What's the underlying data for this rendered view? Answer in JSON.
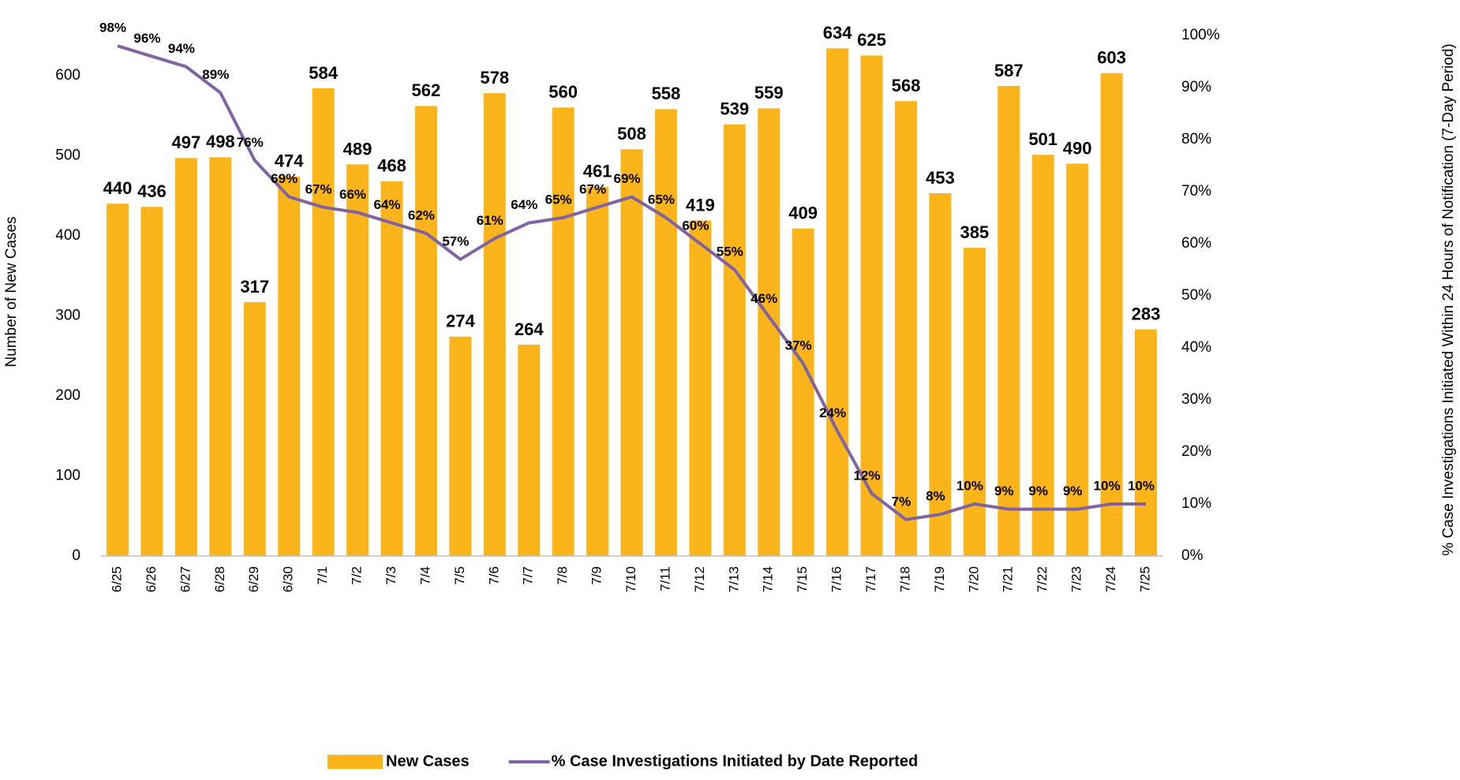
{
  "chart_data": {
    "type": "bar_line",
    "categories": [
      "6/25",
      "6/26",
      "6/27",
      "6/28",
      "6/29",
      "6/30",
      "7/1",
      "7/2",
      "7/3",
      "7/4",
      "7/5",
      "7/6",
      "7/7",
      "7/8",
      "7/9",
      "7/10",
      "7/11",
      "7/12",
      "7/13",
      "7/14",
      "7/15",
      "7/16",
      "7/17",
      "7/18",
      "7/19",
      "7/20",
      "7/21",
      "7/22",
      "7/23",
      "7/24",
      "7/25"
    ],
    "series": [
      {
        "name": "New Cases",
        "type": "bar",
        "color": "#fbb41a",
        "values": [
          440,
          436,
          497,
          498,
          317,
          474,
          584,
          489,
          468,
          562,
          274,
          578,
          264,
          560,
          461,
          508,
          558,
          419,
          539,
          559,
          409,
          634,
          625,
          568,
          453,
          385,
          587,
          501,
          490,
          603,
          283
        ]
      },
      {
        "name": "% Case Investigations Initiated by Date Reported",
        "type": "line",
        "axis": "y2",
        "color": "#8064a2",
        "values": [
          98,
          96,
          94,
          89,
          76,
          69,
          67,
          66,
          64,
          62,
          57,
          61,
          64,
          65,
          67,
          69,
          65,
          60,
          55,
          46,
          37,
          24,
          12,
          7,
          8,
          10,
          9,
          9,
          9,
          10,
          10
        ],
        "value_labels": [
          "98%",
          "96%",
          "94%",
          "89%",
          "76%",
          "69%",
          "67%",
          "66%",
          "64%",
          "62%",
          "57%",
          "61%",
          "64%",
          "65%",
          "67%",
          "69%",
          "65%",
          "60%",
          "55%",
          "46%",
          "37%",
          "24%",
          "12%",
          "7%",
          "8%",
          "10%",
          "9%",
          "9%",
          "9%",
          "10%",
          "10%"
        ]
      }
    ],
    "ylabel": "Number of New Cases",
    "y2label": "% Case Investigations Initiated Within 24 Hours of Notification (7-Day Period)",
    "ylim": [
      0,
      650
    ],
    "yticks": [
      0,
      100,
      200,
      300,
      400,
      500,
      600
    ],
    "y2lim": [
      0,
      100
    ],
    "y2ticks": [
      {
        "value": 0,
        "label": "0%"
      },
      {
        "value": 10,
        "label": "10%"
      },
      {
        "value": 20,
        "label": "20%"
      },
      {
        "value": 30,
        "label": "30%"
      },
      {
        "value": 40,
        "label": "40%"
      },
      {
        "value": 50,
        "label": "50%"
      },
      {
        "value": 60,
        "label": "60%"
      },
      {
        "value": 70,
        "label": "70%"
      },
      {
        "value": 80,
        "label": "80%"
      },
      {
        "value": 90,
        "label": "90%"
      },
      {
        "value": 100,
        "label": "100%"
      }
    ],
    "legend": "bottom"
  }
}
